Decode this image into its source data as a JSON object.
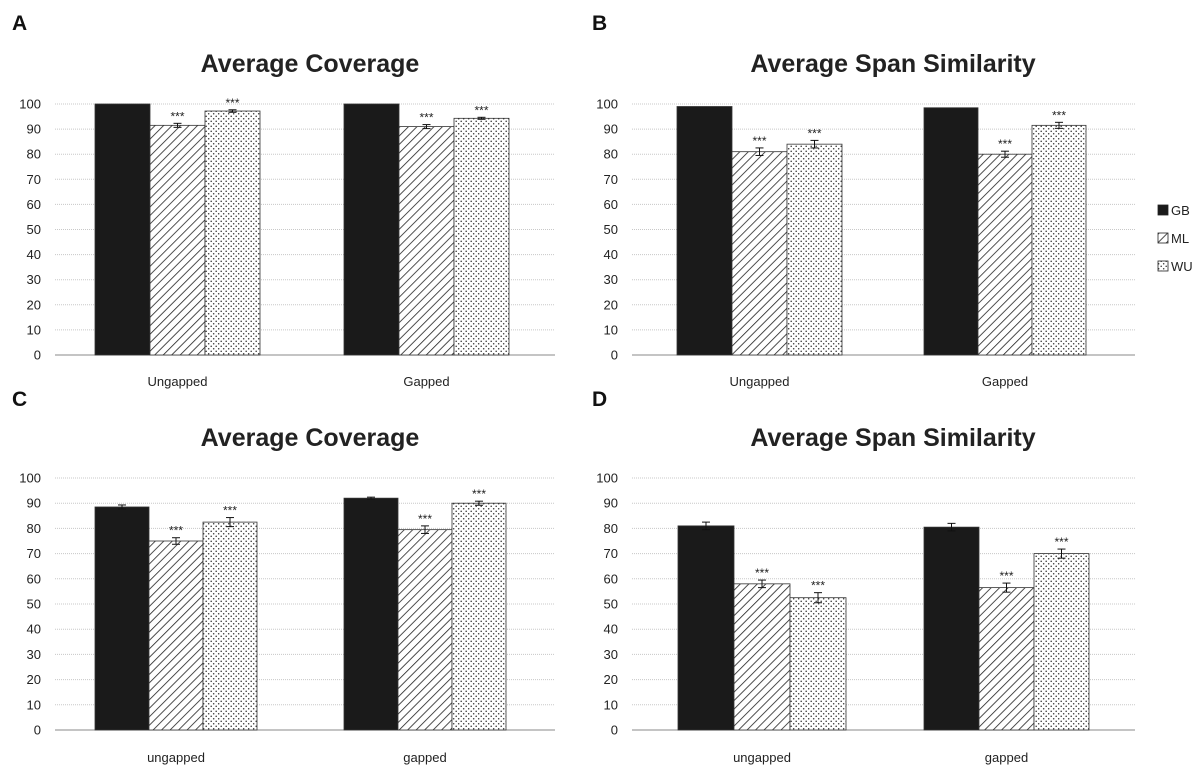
{
  "legend": [
    {
      "name": "GB",
      "pattern": "solid"
    },
    {
      "name": "ML",
      "pattern": "hatch"
    },
    {
      "name": "WU",
      "pattern": "dots"
    }
  ],
  "colors": {
    "bar_solid": "#1a1a1a",
    "bar_stroke": "#333333",
    "grid": "#c8c8c8",
    "axis": "#888888"
  },
  "chart_data": [
    {
      "panel": "A",
      "type": "bar",
      "title": "Average Coverage",
      "categories": [
        "Ungapped",
        "Gapped"
      ],
      "ylim": [
        0,
        100
      ],
      "yticks": [
        "0",
        "10",
        "20",
        "30",
        "40",
        "50",
        "60",
        "70",
        "80",
        "90",
        "100"
      ],
      "grid": true,
      "series": [
        {
          "name": "GB",
          "values": [
            100,
            100
          ],
          "errors": [
            0,
            0
          ],
          "sig": [
            "",
            ""
          ]
        },
        {
          "name": "ML",
          "values": [
            91.5,
            91
          ],
          "errors": [
            0.8,
            0.8
          ],
          "sig": [
            "***",
            "***"
          ]
        },
        {
          "name": "WU",
          "values": [
            97.2,
            94.3
          ],
          "errors": [
            0.5,
            0.4
          ],
          "sig": [
            "***",
            "***"
          ]
        }
      ]
    },
    {
      "panel": "B",
      "type": "bar",
      "title": "Average Span Similarity",
      "categories": [
        "Ungapped",
        "Gapped"
      ],
      "ylim": [
        0,
        100
      ],
      "yticks": [
        "0",
        "10",
        "20",
        "30",
        "40",
        "50",
        "60",
        "70",
        "80",
        "90",
        "100"
      ],
      "grid": true,
      "series": [
        {
          "name": "GB",
          "values": [
            99,
            98.5
          ],
          "errors": [
            0,
            0
          ],
          "sig": [
            "",
            ""
          ]
        },
        {
          "name": "ML",
          "values": [
            81,
            80
          ],
          "errors": [
            1.5,
            1.2
          ],
          "sig": [
            "***",
            "***"
          ]
        },
        {
          "name": "WU",
          "values": [
            84,
            91.5
          ],
          "errors": [
            1.5,
            1.2
          ],
          "sig": [
            "***",
            "***"
          ]
        }
      ]
    },
    {
      "panel": "C",
      "type": "bar",
      "title": "Average Coverage",
      "categories": [
        "ungapped",
        "gapped"
      ],
      "ylim": [
        0,
        100
      ],
      "yticks": [
        "0",
        "10",
        "20",
        "30",
        "40",
        "50",
        "60",
        "70",
        "80",
        "90",
        "100"
      ],
      "grid": true,
      "series": [
        {
          "name": "GB",
          "values": [
            88.5,
            92
          ],
          "errors": [
            0.8,
            0.4
          ],
          "sig": [
            "",
            ""
          ]
        },
        {
          "name": "ML",
          "values": [
            75,
            79.5
          ],
          "errors": [
            1.3,
            1.5
          ],
          "sig": [
            "***",
            "***"
          ]
        },
        {
          "name": "WU",
          "values": [
            82.5,
            90
          ],
          "errors": [
            1.8,
            0.8
          ],
          "sig": [
            "***",
            "***"
          ]
        }
      ]
    },
    {
      "panel": "D",
      "type": "bar",
      "title": "Average Span Similarity",
      "categories": [
        "ungapped",
        "gapped"
      ],
      "ylim": [
        0,
        100
      ],
      "yticks": [
        "0",
        "10",
        "20",
        "30",
        "40",
        "50",
        "60",
        "70",
        "80",
        "90",
        "100"
      ],
      "grid": true,
      "series": [
        {
          "name": "GB",
          "values": [
            81,
            80.5
          ],
          "errors": [
            1.5,
            1.5
          ],
          "sig": [
            "",
            ""
          ]
        },
        {
          "name": "ML",
          "values": [
            58,
            56.5
          ],
          "errors": [
            1.5,
            1.8
          ],
          "sig": [
            "***",
            "***"
          ]
        },
        {
          "name": "WU",
          "values": [
            52.5,
            70
          ],
          "errors": [
            2,
            1.8
          ],
          "sig": [
            "***",
            "***"
          ]
        }
      ]
    }
  ]
}
